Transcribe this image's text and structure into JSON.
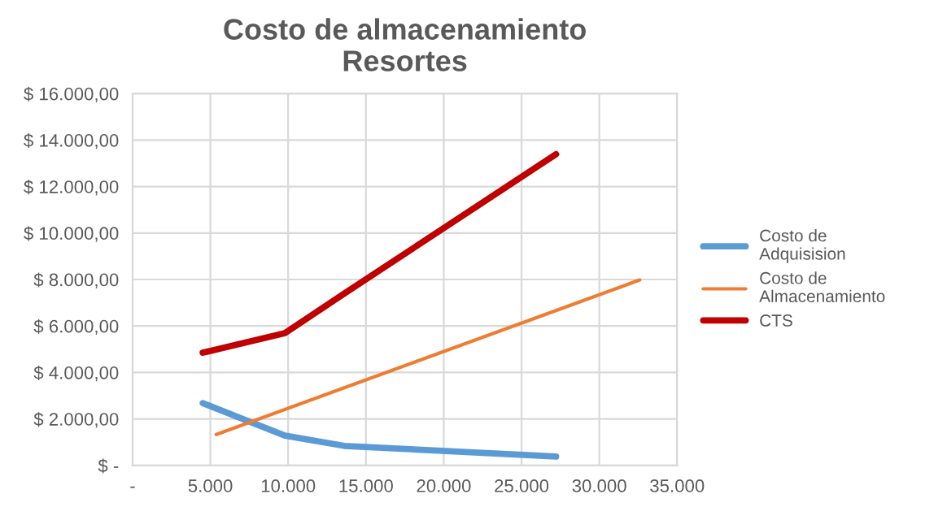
{
  "chart_data": {
    "type": "line",
    "title": "Costo de almacenamiento\nResortes",
    "series": [
      {
        "name": "Costo de\nAdquisision",
        "color": "#5b9bd5",
        "x": [
          4510,
          9790,
          13610,
          27220
        ],
        "values": [
          2680,
          1280,
          840,
          380
        ]
      },
      {
        "name": "Costo de\nAlmacenamiento",
        "color": "#ed7d31",
        "x": [
          5380,
          32600
        ],
        "values": [
          1330,
          7980
        ]
      },
      {
        "name": "CTS",
        "color": "#c00000",
        "x": [
          4510,
          9790,
          13610,
          27220
        ],
        "values": [
          4850,
          5690,
          7400,
          13390
        ]
      }
    ],
    "xlim": [
      0,
      35000
    ],
    "xticks": [
      {
        "value": 0,
        "label": "-"
      },
      {
        "value": 5000,
        "label": "5.000"
      },
      {
        "value": 10000,
        "label": "10.000"
      },
      {
        "value": 15000,
        "label": "15.000"
      },
      {
        "value": 20000,
        "label": "20.000"
      },
      {
        "value": 25000,
        "label": "25.000"
      },
      {
        "value": 30000,
        "label": "30.000"
      },
      {
        "value": 35000,
        "label": "35.000"
      }
    ],
    "ylim": [
      0,
      16000
    ],
    "yticks": [
      {
        "value": 0,
        "label": "$ -"
      },
      {
        "value": 2000,
        "label": "$ 2.000,00"
      },
      {
        "value": 4000,
        "label": "$ 4.000,00"
      },
      {
        "value": 6000,
        "label": "$ 6.000,00"
      },
      {
        "value": 8000,
        "label": "$ 8.000,00"
      },
      {
        "value": 10000,
        "label": "$ 10.000,00"
      },
      {
        "value": 12000,
        "label": "$ 12.000,00"
      },
      {
        "value": 14000,
        "label": "$ 14.000,00"
      },
      {
        "value": 16000,
        "label": "$ 16.000,00"
      }
    ],
    "grid": true,
    "legend": "right",
    "marker": "none",
    "line_style": "solid"
  }
}
